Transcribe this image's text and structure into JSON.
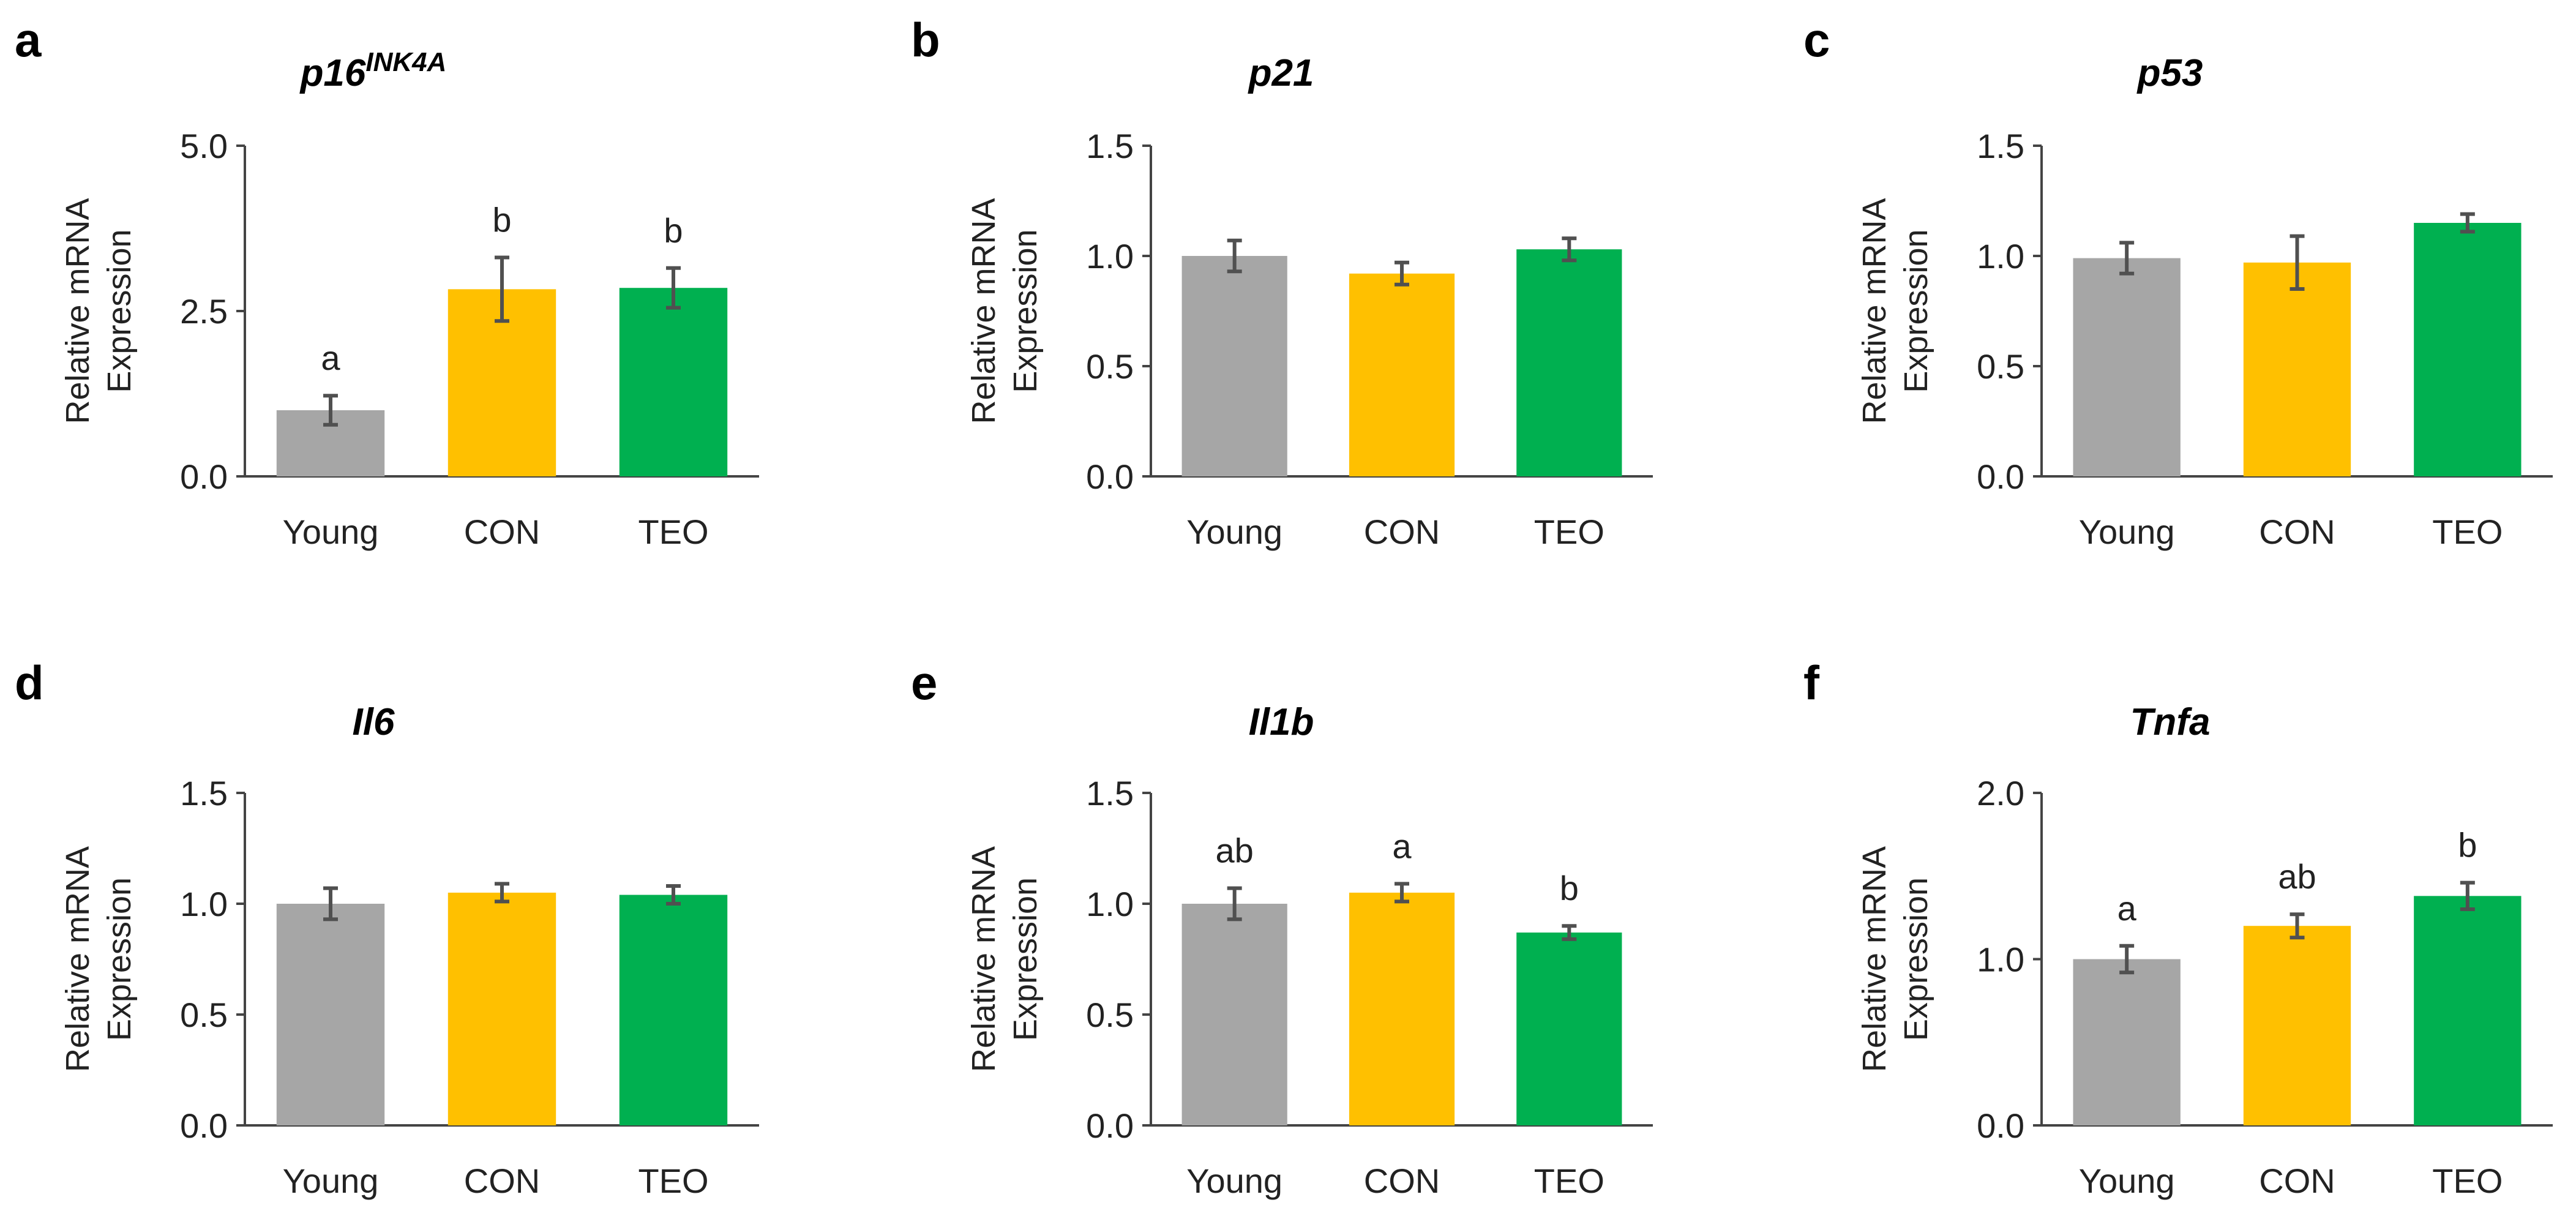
{
  "figure": {
    "colors": {
      "Young": "#a6a6a6",
      "CON": "#ffc000",
      "TEO": "#00b050"
    }
  },
  "chart_data": [
    {
      "type": "bar",
      "panel": "a",
      "title": "p16",
      "title_sup": "INK4A",
      "categories": [
        "Young",
        "CON",
        "TEO"
      ],
      "values": [
        1.0,
        2.83,
        2.85
      ],
      "errors": [
        0.22,
        0.48,
        0.3
      ],
      "sig_labels": [
        "a",
        "b",
        "b"
      ],
      "ylabel": [
        "Relative mRNA",
        "Expression"
      ],
      "xlabel": "",
      "ylim": [
        0,
        5.0
      ],
      "yticks": [
        0.0,
        2.5,
        5.0
      ],
      "ytick_labels": [
        "0.0",
        "2.5",
        "5.0"
      ],
      "grid": false
    },
    {
      "type": "bar",
      "panel": "b",
      "title": "p21",
      "title_sup": "",
      "categories": [
        "Young",
        "CON",
        "TEO"
      ],
      "values": [
        1.0,
        0.92,
        1.03
      ],
      "errors": [
        0.07,
        0.05,
        0.05
      ],
      "sig_labels": [
        "",
        "",
        ""
      ],
      "ylabel": [
        "Relative mRNA",
        "Expression"
      ],
      "xlabel": "",
      "ylim": [
        0,
        1.5
      ],
      "yticks": [
        0.0,
        0.5,
        1.0,
        1.5
      ],
      "ytick_labels": [
        "0.0",
        "0.5",
        "1.0",
        "1.5"
      ],
      "grid": false
    },
    {
      "type": "bar",
      "panel": "c",
      "title": "p53",
      "title_sup": "",
      "categories": [
        "Young",
        "CON",
        "TEO"
      ],
      "values": [
        0.99,
        0.97,
        1.15
      ],
      "errors": [
        0.07,
        0.12,
        0.04
      ],
      "sig_labels": [
        "",
        "",
        ""
      ],
      "ylabel": [
        "Relative mRNA",
        "Expression"
      ],
      "xlabel": "",
      "ylim": [
        0,
        1.5
      ],
      "yticks": [
        0.0,
        0.5,
        1.0,
        1.5
      ],
      "ytick_labels": [
        "0.0",
        "0.5",
        "1.0",
        "1.5"
      ],
      "grid": false
    },
    {
      "type": "bar",
      "panel": "d",
      "title": "Il6",
      "title_sup": "",
      "categories": [
        "Young",
        "CON",
        "TEO"
      ],
      "values": [
        1.0,
        1.05,
        1.04
      ],
      "errors": [
        0.07,
        0.04,
        0.04
      ],
      "sig_labels": [
        "",
        "",
        ""
      ],
      "ylabel": [
        "Relative mRNA",
        "Expression"
      ],
      "xlabel": "",
      "ylim": [
        0,
        1.5
      ],
      "yticks": [
        0.0,
        0.5,
        1.0,
        1.5
      ],
      "ytick_labels": [
        "0.0",
        "0.5",
        "1.0",
        "1.5"
      ],
      "grid": false
    },
    {
      "type": "bar",
      "panel": "e",
      "title": "Il1b",
      "title_sup": "",
      "categories": [
        "Young",
        "CON",
        "TEO"
      ],
      "values": [
        1.0,
        1.05,
        0.87
      ],
      "errors": [
        0.07,
        0.04,
        0.03
      ],
      "sig_labels": [
        "ab",
        "a",
        "b"
      ],
      "ylabel": [
        "Relative mRNA",
        "Expression"
      ],
      "xlabel": "",
      "ylim": [
        0,
        1.5
      ],
      "yticks": [
        0.0,
        0.5,
        1.0,
        1.5
      ],
      "ytick_labels": [
        "0.0",
        "0.5",
        "1.0",
        "1.5"
      ],
      "grid": false
    },
    {
      "type": "bar",
      "panel": "f",
      "title": "Tnfa",
      "title_sup": "",
      "categories": [
        "Young",
        "CON",
        "TEO"
      ],
      "values": [
        1.0,
        1.2,
        1.38
      ],
      "errors": [
        0.08,
        0.07,
        0.08
      ],
      "sig_labels": [
        "a",
        "ab",
        "b"
      ],
      "ylabel": [
        "Relative mRNA",
        "Expression"
      ],
      "xlabel": "",
      "ylim": [
        0,
        2.0
      ],
      "yticks": [
        0.0,
        1.0,
        2.0
      ],
      "ytick_labels": [
        "0.0",
        "1.0",
        "2.0"
      ],
      "grid": false
    }
  ]
}
